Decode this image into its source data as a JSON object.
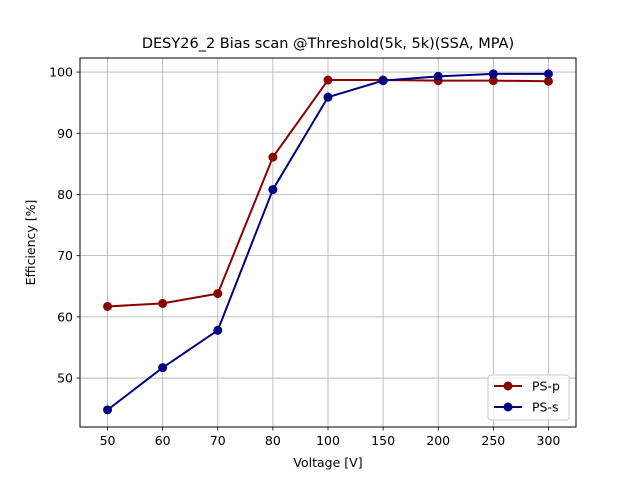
{
  "chart_data": {
    "type": "line",
    "title": "DESY26_2 Bias scan @Threshold(5k, 5k)(SSA, MPA)",
    "xlabel": "Voltage [V]",
    "ylabel": "Efficiency [%]",
    "categories": [
      "50",
      "60",
      "70",
      "80",
      "100",
      "150",
      "200",
      "250",
      "300"
    ],
    "ylim": [
      42,
      102.3
    ],
    "yticks": [
      50,
      60,
      70,
      80,
      90,
      100
    ],
    "grid": true,
    "legend_position": "lower right",
    "series": [
      {
        "name": "PS-p",
        "color": "#8b0000",
        "values": [
          61.7,
          62.2,
          63.8,
          86.1,
          98.7,
          98.7,
          98.6,
          98.6,
          98.5
        ]
      },
      {
        "name": "PS-s",
        "color": "#000080",
        "values": [
          44.8,
          51.7,
          57.8,
          80.8,
          95.9,
          98.6,
          99.3,
          99.7,
          99.7
        ]
      }
    ]
  }
}
